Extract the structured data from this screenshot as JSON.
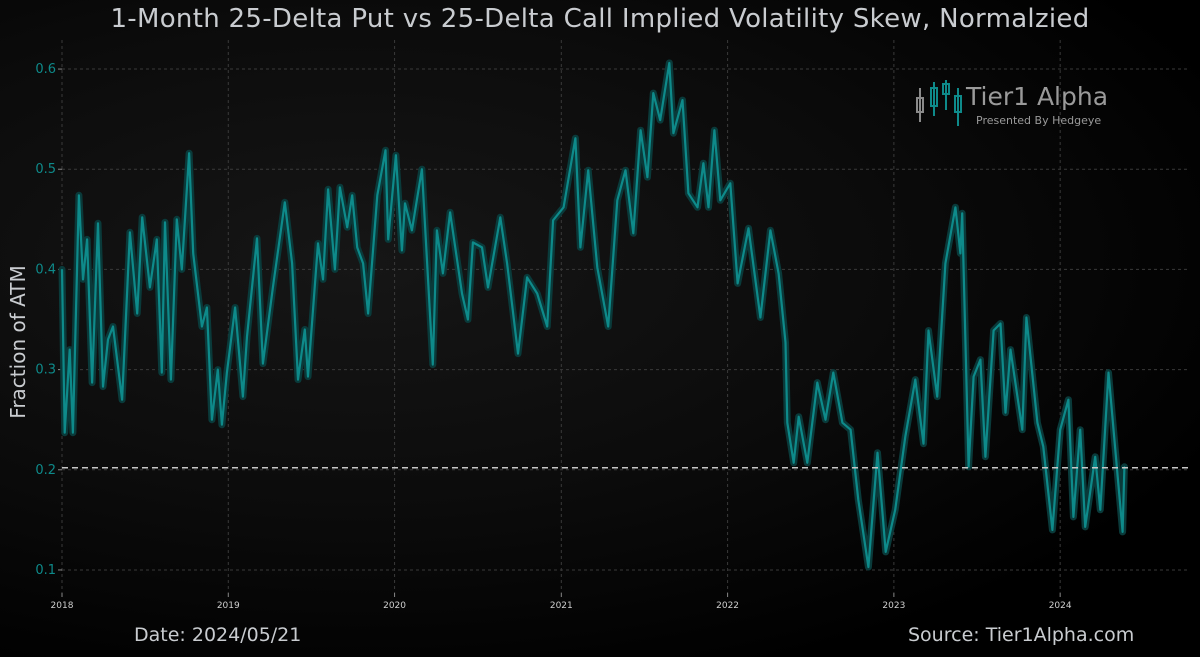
{
  "footer": {
    "date": "Date: 2024/05/21",
    "source": "Source: Tier1Alpha.com"
  },
  "logo": {
    "name": "Tier1 Alpha",
    "tagline": "Presented By Hedgeye",
    "colors": {
      "teal": "#0e8a8a",
      "gray": "#8a8a8a"
    }
  },
  "chart_data": {
    "type": "line",
    "title": "1-Month 25-Delta Put vs 25-Delta Call Implied Volatility Skew, Normalzied",
    "xlabel": "",
    "ylabel": "Fraction of ATM",
    "xlim": [
      "2018-01-01",
      "2024-10-12"
    ],
    "ylim": [
      0.077,
      0.629
    ],
    "x_ticks": [
      "2018",
      "2019",
      "2020",
      "2021",
      "2022",
      "2023",
      "2024"
    ],
    "y_ticks": [
      0.1,
      0.2,
      0.3,
      0.4,
      0.5,
      0.6
    ],
    "y_tick_labels": [
      "0.1",
      "0.2",
      "0.3",
      "0.4",
      "0.5",
      "0.6"
    ],
    "grid": true,
    "reference_line": {
      "value": 0.202,
      "style": "dashed",
      "color": "#c8c8c8"
    },
    "line_color": "#0e8a8a",
    "series": [
      {
        "points": [
          [
            "2018-01-01",
            0.4
          ],
          [
            "2018-01-07",
            0.237
          ],
          [
            "2018-01-18",
            0.32
          ],
          [
            "2018-01-25",
            0.237
          ],
          [
            "2018-02-07",
            0.474
          ],
          [
            "2018-02-16",
            0.39
          ],
          [
            "2018-02-25",
            0.43
          ],
          [
            "2018-03-08",
            0.287
          ],
          [
            "2018-03-21",
            0.446
          ],
          [
            "2018-04-01",
            0.283
          ],
          [
            "2018-04-12",
            0.33
          ],
          [
            "2018-04-23",
            0.343
          ],
          [
            "2018-05-13",
            0.27
          ],
          [
            "2018-05-30",
            0.437
          ],
          [
            "2018-06-15",
            0.356
          ],
          [
            "2018-06-26",
            0.452
          ],
          [
            "2018-07-13",
            0.382
          ],
          [
            "2018-07-28",
            0.43
          ],
          [
            "2018-08-08",
            0.297
          ],
          [
            "2018-08-15",
            0.447
          ],
          [
            "2018-08-28",
            0.29
          ],
          [
            "2018-09-10",
            0.45
          ],
          [
            "2018-09-21",
            0.4
          ],
          [
            "2018-10-07",
            0.516
          ],
          [
            "2018-10-16",
            0.416
          ],
          [
            "2018-11-04",
            0.343
          ],
          [
            "2018-11-15",
            0.362
          ],
          [
            "2018-11-26",
            0.25
          ],
          [
            "2018-12-09",
            0.3
          ],
          [
            "2018-12-18",
            0.245
          ],
          [
            "2018-12-29",
            0.297
          ],
          [
            "2019-01-16",
            0.362
          ],
          [
            "2019-02-02",
            0.273
          ],
          [
            "2019-02-11",
            0.333
          ],
          [
            "2019-03-05",
            0.431
          ],
          [
            "2019-03-18",
            0.306
          ],
          [
            "2019-04-09",
            0.382
          ],
          [
            "2019-05-05",
            0.467
          ],
          [
            "2019-05-21",
            0.406
          ],
          [
            "2019-06-03",
            0.29
          ],
          [
            "2019-06-18",
            0.34
          ],
          [
            "2019-06-25",
            0.293
          ],
          [
            "2019-07-17",
            0.426
          ],
          [
            "2019-07-28",
            0.39
          ],
          [
            "2019-08-08",
            0.48
          ],
          [
            "2019-08-23",
            0.4
          ],
          [
            "2019-09-03",
            0.482
          ],
          [
            "2019-09-19",
            0.442
          ],
          [
            "2019-09-30",
            0.474
          ],
          [
            "2019-10-11",
            0.422
          ],
          [
            "2019-10-24",
            0.406
          ],
          [
            "2019-11-04",
            0.356
          ],
          [
            "2019-11-24",
            0.474
          ],
          [
            "2019-12-12",
            0.519
          ],
          [
            "2019-12-18",
            0.43
          ],
          [
            "2020-01-04",
            0.514
          ],
          [
            "2020-01-17",
            0.419
          ],
          [
            "2020-01-24",
            0.466
          ],
          [
            "2020-02-08",
            0.439
          ],
          [
            "2020-03-01",
            0.5
          ],
          [
            "2020-03-25",
            0.305
          ],
          [
            "2020-04-03",
            0.439
          ],
          [
            "2020-04-16",
            0.396
          ],
          [
            "2020-05-02",
            0.457
          ],
          [
            "2020-05-28",
            0.376
          ],
          [
            "2020-06-10",
            0.35
          ],
          [
            "2020-06-21",
            0.427
          ],
          [
            "2020-07-11",
            0.422
          ],
          [
            "2020-07-24",
            0.382
          ],
          [
            "2020-08-20",
            0.452
          ],
          [
            "2020-09-04",
            0.406
          ],
          [
            "2020-09-28",
            0.316
          ],
          [
            "2020-10-18",
            0.392
          ],
          [
            "2020-11-09",
            0.376
          ],
          [
            "2020-12-01",
            0.343
          ],
          [
            "2020-12-14",
            0.449
          ],
          [
            "2021-01-06",
            0.462
          ],
          [
            "2021-02-01",
            0.531
          ],
          [
            "2021-02-12",
            0.422
          ],
          [
            "2021-03-01",
            0.499
          ],
          [
            "2021-03-21",
            0.402
          ],
          [
            "2021-04-14",
            0.343
          ],
          [
            "2021-05-04",
            0.469
          ],
          [
            "2021-05-22",
            0.499
          ],
          [
            "2021-06-08",
            0.436
          ],
          [
            "2021-06-24",
            0.539
          ],
          [
            "2021-07-09",
            0.492
          ],
          [
            "2021-07-22",
            0.576
          ],
          [
            "2021-08-06",
            0.549
          ],
          [
            "2021-08-26",
            0.606
          ],
          [
            "2021-09-04",
            0.536
          ],
          [
            "2021-09-24",
            0.569
          ],
          [
            "2021-10-07",
            0.476
          ],
          [
            "2021-10-27",
            0.462
          ],
          [
            "2021-11-09",
            0.506
          ],
          [
            "2021-11-20",
            0.462
          ],
          [
            "2021-12-03",
            0.539
          ],
          [
            "2021-12-16",
            0.469
          ],
          [
            "2022-01-07",
            0.486
          ],
          [
            "2022-01-23",
            0.386
          ],
          [
            "2022-02-16",
            0.441
          ],
          [
            "2022-03-14",
            0.352
          ],
          [
            "2022-04-05",
            0.439
          ],
          [
            "2022-04-23",
            0.396
          ],
          [
            "2022-05-08",
            0.327
          ],
          [
            "2022-05-12",
            0.247
          ],
          [
            "2022-05-26",
            0.207
          ],
          [
            "2022-06-06",
            0.253
          ],
          [
            "2022-06-25",
            0.207
          ],
          [
            "2022-07-17",
            0.287
          ],
          [
            "2022-08-04",
            0.25
          ],
          [
            "2022-08-21",
            0.297
          ],
          [
            "2022-09-10",
            0.247
          ],
          [
            "2022-09-28",
            0.24
          ],
          [
            "2022-10-15",
            0.17
          ],
          [
            "2022-11-06",
            0.103
          ],
          [
            "2022-11-26",
            0.217
          ],
          [
            "2022-12-14",
            0.118
          ],
          [
            "2023-01-04",
            0.16
          ],
          [
            "2023-01-26",
            0.233
          ],
          [
            "2023-02-17",
            0.29
          ],
          [
            "2023-03-07",
            0.226
          ],
          [
            "2023-03-18",
            0.339
          ],
          [
            "2023-04-06",
            0.273
          ],
          [
            "2023-04-24",
            0.406
          ],
          [
            "2023-05-16",
            0.462
          ],
          [
            "2023-05-27",
            0.416
          ],
          [
            "2023-05-31",
            0.456
          ],
          [
            "2023-06-14",
            0.203
          ],
          [
            "2023-06-25",
            0.293
          ],
          [
            "2023-07-10",
            0.31
          ],
          [
            "2023-07-21",
            0.213
          ],
          [
            "2023-08-08",
            0.339
          ],
          [
            "2023-08-23",
            0.346
          ],
          [
            "2023-09-03",
            0.257
          ],
          [
            "2023-09-14",
            0.32
          ],
          [
            "2023-10-10",
            0.24
          ],
          [
            "2023-10-19",
            0.352
          ],
          [
            "2023-11-12",
            0.247
          ],
          [
            "2023-11-25",
            0.223
          ],
          [
            "2023-12-15",
            0.14
          ],
          [
            "2024-01-01",
            0.24
          ],
          [
            "2024-01-19",
            0.27
          ],
          [
            "2024-01-30",
            0.153
          ],
          [
            "2024-02-14",
            0.24
          ],
          [
            "2024-02-25",
            0.143
          ],
          [
            "2024-03-18",
            0.213
          ],
          [
            "2024-03-29",
            0.16
          ],
          [
            "2024-04-16",
            0.297
          ],
          [
            "2024-05-01",
            0.22
          ],
          [
            "2024-05-17",
            0.138
          ],
          [
            "2024-05-21",
            0.203
          ]
        ]
      }
    ]
  }
}
